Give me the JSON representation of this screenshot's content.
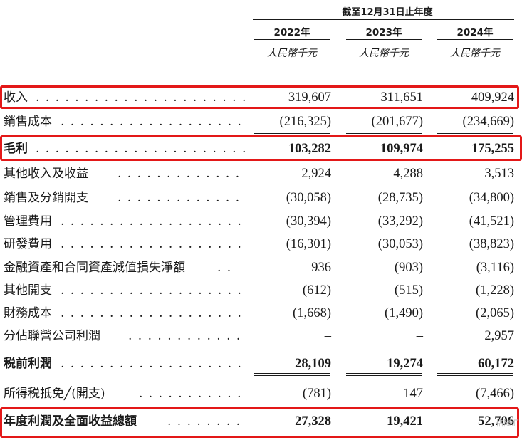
{
  "header": {
    "period": "截至12月31日止年度",
    "years": [
      "2022年",
      "2023年",
      "2024年"
    ],
    "unit": "人民幣千元"
  },
  "rows": [
    {
      "label": "收入",
      "dots": ". . . . . . . . . . . . . . . . . . . . . . . . . . . . . .",
      "values": [
        "319,607",
        "311,651",
        "409,924"
      ],
      "bold": false,
      "highlight": true
    },
    {
      "label": "銷售成本",
      "dots": ". . . . . . . . . . . . . . . . . . . . . . . . . . . .",
      "values": [
        "(216,325)",
        "(201,677)",
        "(234,669)"
      ],
      "bold": false,
      "highlight": false
    },
    {
      "label": "毛利",
      "dots": ". . . . . . . . . . . . . . . . . . . . . . . . . . . . . .",
      "values": [
        "103,282",
        "109,974",
        "175,255"
      ],
      "bold": true,
      "highlight": true
    },
    {
      "label": "其他收入及收益",
      "dots": ". . . . . . . . . . . . . . . . . . . . . . .",
      "values": [
        "2,924",
        "4,288",
        "3,513"
      ],
      "bold": false,
      "highlight": false
    },
    {
      "label": "銷售及分銷開支",
      "dots": ". . . . . . . . . . . . . . . . . . . . . . .",
      "values": [
        "(30,058)",
        "(28,735)",
        "(34,800)"
      ],
      "bold": false,
      "highlight": false
    },
    {
      "label": "管理費用",
      "dots": ". . . . . . . . . . . . . . . . . . . . . . . . . . . .",
      "values": [
        "(30,394)",
        "(33,292)",
        "(41,521)"
      ],
      "bold": false,
      "highlight": false
    },
    {
      "label": "研發費用",
      "dots": ". . . . . . . . . . . . . . . . . . . . . . . . . . . .",
      "values": [
        "(16,301)",
        "(30,053)",
        "(38,823)"
      ],
      "bold": false,
      "highlight": false
    },
    {
      "label": "金融資產和合同資產減值損失淨額",
      "dots": ". .",
      "values": [
        "936",
        "(903)",
        "(3,116)"
      ],
      "bold": false,
      "highlight": false
    },
    {
      "label": "其他開支",
      "dots": ". . . . . . . . . . . . . . . . . . . . . . . . . . . .",
      "values": [
        "(612)",
        "(515)",
        "(1,228)"
      ],
      "bold": false,
      "highlight": false
    },
    {
      "label": "財務成本",
      "dots": ". . . . . . . . . . . . . . . . . . . . . . . . . . . .",
      "values": [
        "(1,668)",
        "(1,490)",
        "(2,065)"
      ],
      "bold": false,
      "highlight": false
    },
    {
      "label": "分佔聯營公司利潤",
      "dots": ". . . . . . . . . . . . . . . . . . . . .",
      "values": [
        "–",
        "–",
        "2,957"
      ],
      "bold": false,
      "highlight": false
    },
    {
      "label": "税前利潤",
      "dots": ". . . . . . . . . . . . . . . . . . . . . . . . . . . .",
      "values": [
        "28,109",
        "19,274",
        "60,172"
      ],
      "bold": true,
      "highlight": false
    },
    {
      "label": "所得税抵免╱(開支)",
      "dots": ". . . . . . . . . . . . . . . . . . .",
      "values": [
        "(781)",
        "147",
        "(7,466)"
      ],
      "bold": false,
      "highlight": false
    },
    {
      "label": "年度利潤及全面收益總額",
      "dots": ". . . . . . . . .",
      "values": [
        "27,328",
        "19,421",
        "52,706"
      ],
      "bold": true,
      "highlight": true
    }
  ],
  "watermark": "格隆汇",
  "accent_color": "#e31818"
}
